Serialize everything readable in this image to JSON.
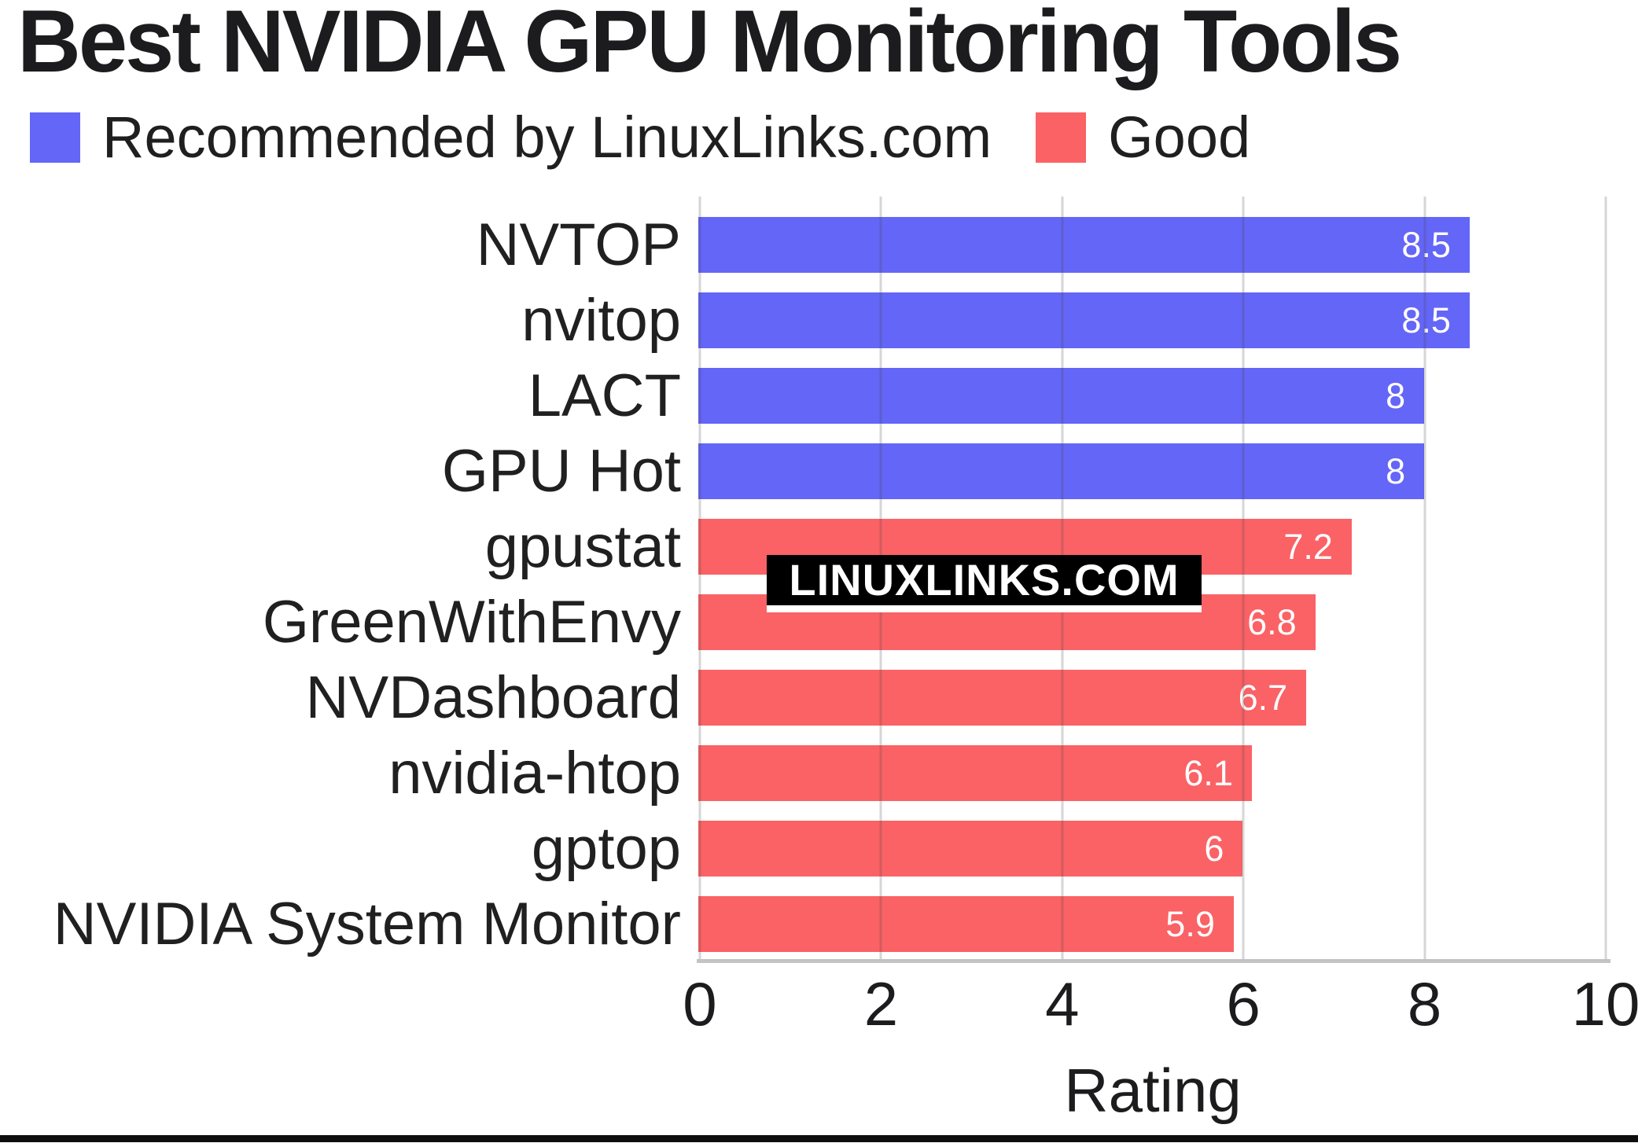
{
  "title": "Best NVIDIA GPU Monitoring Tools",
  "legend": {
    "items": [
      {
        "label": "Recommended by LinuxLinks.com",
        "color": "#6466f7",
        "series": "recommended"
      },
      {
        "label": "Good",
        "color": "#fa6266",
        "series": "good"
      }
    ]
  },
  "watermark": {
    "text": "LINUXLINKS.COM",
    "bg": "#000000",
    "fg": "#ffffff"
  },
  "colors": {
    "recommended": "#6466f7",
    "good": "#fa6266",
    "gridline": "rgba(70,70,70,0.22)",
    "axis_line": "#c3c3c3",
    "text": "#1c1c1e",
    "footer_bar": "#0e0e0e"
  },
  "chart_data": {
    "type": "bar",
    "orientation": "horizontal",
    "title": "Best NVIDIA GPU Monitoring Tools",
    "xlabel": "Rating",
    "ylabel": "",
    "xlim": [
      0,
      10
    ],
    "x_ticks": [
      0,
      2,
      4,
      6,
      8,
      10
    ],
    "grid": "on",
    "legend_position": "top",
    "categories": [
      "NVTOP",
      "nvitop",
      "LACT",
      "GPU Hot",
      "gpustat",
      "GreenWithEnvy",
      "NVDashboard",
      "nvidia-htop",
      "gptop",
      "NVIDIA System Monitor"
    ],
    "values": [
      8.5,
      8.5,
      8,
      8,
      7.2,
      6.8,
      6.7,
      6.1,
      6,
      5.9
    ],
    "items": [
      {
        "category": "NVTOP",
        "value": 8.5,
        "label": "8.5",
        "series": "recommended"
      },
      {
        "category": "nvitop",
        "value": 8.5,
        "label": "8.5",
        "series": "recommended"
      },
      {
        "category": "LACT",
        "value": 8,
        "label": "8",
        "series": "recommended"
      },
      {
        "category": "GPU Hot",
        "value": 8,
        "label": "8",
        "series": "recommended"
      },
      {
        "category": "gpustat",
        "value": 7.2,
        "label": "7.2",
        "series": "good"
      },
      {
        "category": "GreenWithEnvy",
        "value": 6.8,
        "label": "6.8",
        "series": "good"
      },
      {
        "category": "NVDashboard",
        "value": 6.7,
        "label": "6.7",
        "series": "good"
      },
      {
        "category": "nvidia-htop",
        "value": 6.1,
        "label": "6.1",
        "series": "good"
      },
      {
        "category": "gptop",
        "value": 6,
        "label": "6",
        "series": "good"
      },
      {
        "category": "NVIDIA System Monitor",
        "value": 5.9,
        "label": "5.9",
        "series": "good"
      }
    ]
  }
}
